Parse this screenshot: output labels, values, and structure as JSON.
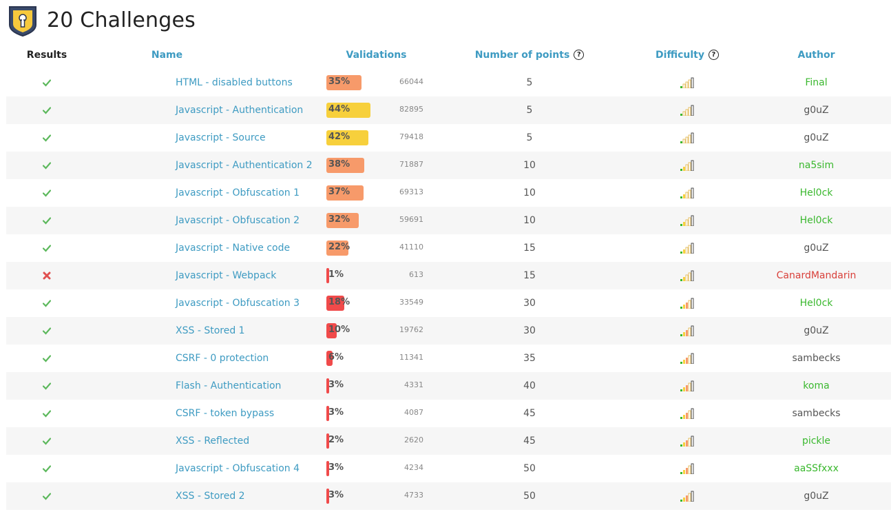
{
  "page": {
    "title": "20 Challenges",
    "icon": "shield-keyhole-icon"
  },
  "table": {
    "headers": {
      "results": "Results",
      "name": "Name",
      "validations": "Validations",
      "points": "Number of points",
      "difficulty": "Difficulty",
      "author": "Author"
    },
    "help_icon": "question-circle-icon",
    "rows": [
      {
        "result": "success",
        "name": "HTML - disabled buttons",
        "pct": "35%",
        "pct_value": 35,
        "count": "66044",
        "points": "5",
        "difficulty": 1,
        "author": "Final",
        "author_color": "#3ab82e"
      },
      {
        "result": "success",
        "name": "Javascript - Authentication",
        "pct": "44%",
        "pct_value": 44,
        "count": "82895",
        "points": "5",
        "difficulty": 1,
        "author": "g0uZ",
        "author_color": "#555555"
      },
      {
        "result": "success",
        "name": "Javascript - Source",
        "pct": "42%",
        "pct_value": 42,
        "count": "79418",
        "points": "5",
        "difficulty": 1,
        "author": "g0uZ",
        "author_color": "#555555"
      },
      {
        "result": "success",
        "name": "Javascript - Authentication 2",
        "pct": "38%",
        "pct_value": 38,
        "count": "71887",
        "points": "10",
        "difficulty": 2,
        "author": "na5sim",
        "author_color": "#3ab82e"
      },
      {
        "result": "success",
        "name": "Javascript - Obfuscation 1",
        "pct": "37%",
        "pct_value": 37,
        "count": "69313",
        "points": "10",
        "difficulty": 2,
        "author": "Hel0ck",
        "author_color": "#3ab82e"
      },
      {
        "result": "success",
        "name": "Javascript - Obfuscation 2",
        "pct": "32%",
        "pct_value": 32,
        "count": "59691",
        "points": "10",
        "difficulty": 2,
        "author": "Hel0ck",
        "author_color": "#3ab82e"
      },
      {
        "result": "success",
        "name": "Javascript - Native code",
        "pct": "22%",
        "pct_value": 22,
        "count": "41110",
        "points": "15",
        "difficulty": 2,
        "author": "g0uZ",
        "author_color": "#555555"
      },
      {
        "result": "fail",
        "name": "Javascript - Webpack",
        "pct": "1%",
        "pct_value": 1,
        "count": "613",
        "points": "15",
        "difficulty": 2,
        "author": "CanardMandarin",
        "author_color": "#d9403a"
      },
      {
        "result": "success",
        "name": "Javascript - Obfuscation 3",
        "pct": "18%",
        "pct_value": 18,
        "count": "33549",
        "points": "30",
        "difficulty": 3,
        "author": "Hel0ck",
        "author_color": "#3ab82e"
      },
      {
        "result": "success",
        "name": "XSS - Stored 1",
        "pct": "10%",
        "pct_value": 10,
        "count": "19762",
        "points": "30",
        "difficulty": 3,
        "author": "g0uZ",
        "author_color": "#555555"
      },
      {
        "result": "success",
        "name": "CSRF - 0 protection",
        "pct": "6%",
        "pct_value": 6,
        "count": "11341",
        "points": "35",
        "difficulty": 3,
        "author": "sambecks",
        "author_color": "#555555"
      },
      {
        "result": "success",
        "name": "Flash - Authentication",
        "pct": "3%",
        "pct_value": 3,
        "count": "4331",
        "points": "40",
        "difficulty": 3,
        "author": "koma",
        "author_color": "#3ab82e"
      },
      {
        "result": "success",
        "name": "CSRF - token bypass",
        "pct": "3%",
        "pct_value": 3,
        "count": "4087",
        "points": "45",
        "difficulty": 3,
        "author": "sambecks",
        "author_color": "#555555"
      },
      {
        "result": "success",
        "name": "XSS - Reflected",
        "pct": "2%",
        "pct_value": 2,
        "count": "2620",
        "points": "45",
        "difficulty": 3,
        "author": "pickle",
        "author_color": "#3ab82e"
      },
      {
        "result": "success",
        "name": "Javascript - Obfuscation 4",
        "pct": "3%",
        "pct_value": 3,
        "count": "4234",
        "points": "50",
        "difficulty": 3,
        "author": "aaSSfxxx",
        "author_color": "#3ab82e"
      },
      {
        "result": "success",
        "name": "XSS - Stored 2",
        "pct": "3%",
        "pct_value": 3,
        "count": "4733",
        "points": "50",
        "difficulty": 3,
        "author": "g0uZ",
        "author_color": "#555555"
      }
    ]
  },
  "colors": {
    "link": "#3e9bc2",
    "bar_high": "#f7d03c",
    "bar_mid": "#f79a6a",
    "bar_low": "#f04a4a",
    "check": "#5cb85c",
    "cross": "#e05050"
  }
}
